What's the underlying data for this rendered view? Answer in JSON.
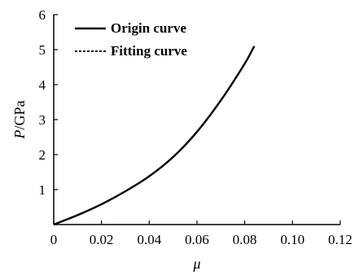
{
  "chart_data": {
    "type": "line",
    "xlabel": "μ",
    "ylabel": "P/GPa",
    "xlim": [
      0,
      0.12
    ],
    "ylim": [
      0,
      6
    ],
    "x_ticks": [
      "0",
      "0.02",
      "0.04",
      "0.06",
      "0.08",
      "0.10",
      "0.12"
    ],
    "y_ticks": [
      "1",
      "2",
      "3",
      "4",
      "5",
      "6"
    ],
    "grid": false,
    "legend_position": "top-left",
    "series": [
      {
        "name": "Origin curve",
        "style": "solid",
        "color": "#000000",
        "x": [
          0,
          0.01,
          0.02,
          0.03,
          0.04,
          0.05,
          0.06,
          0.07,
          0.08,
          0.084
        ],
        "y": [
          0,
          0.27,
          0.58,
          0.95,
          1.38,
          1.93,
          2.65,
          3.55,
          4.6,
          5.1
        ]
      },
      {
        "name": "Fitting curve",
        "style": "dashed",
        "color": "#000000",
        "x": [
          0,
          0.01,
          0.02,
          0.03,
          0.04,
          0.05,
          0.06,
          0.07,
          0.08,
          0.084
        ],
        "y": [
          0,
          0.27,
          0.58,
          0.95,
          1.38,
          1.93,
          2.65,
          3.55,
          4.6,
          5.1
        ]
      }
    ]
  }
}
